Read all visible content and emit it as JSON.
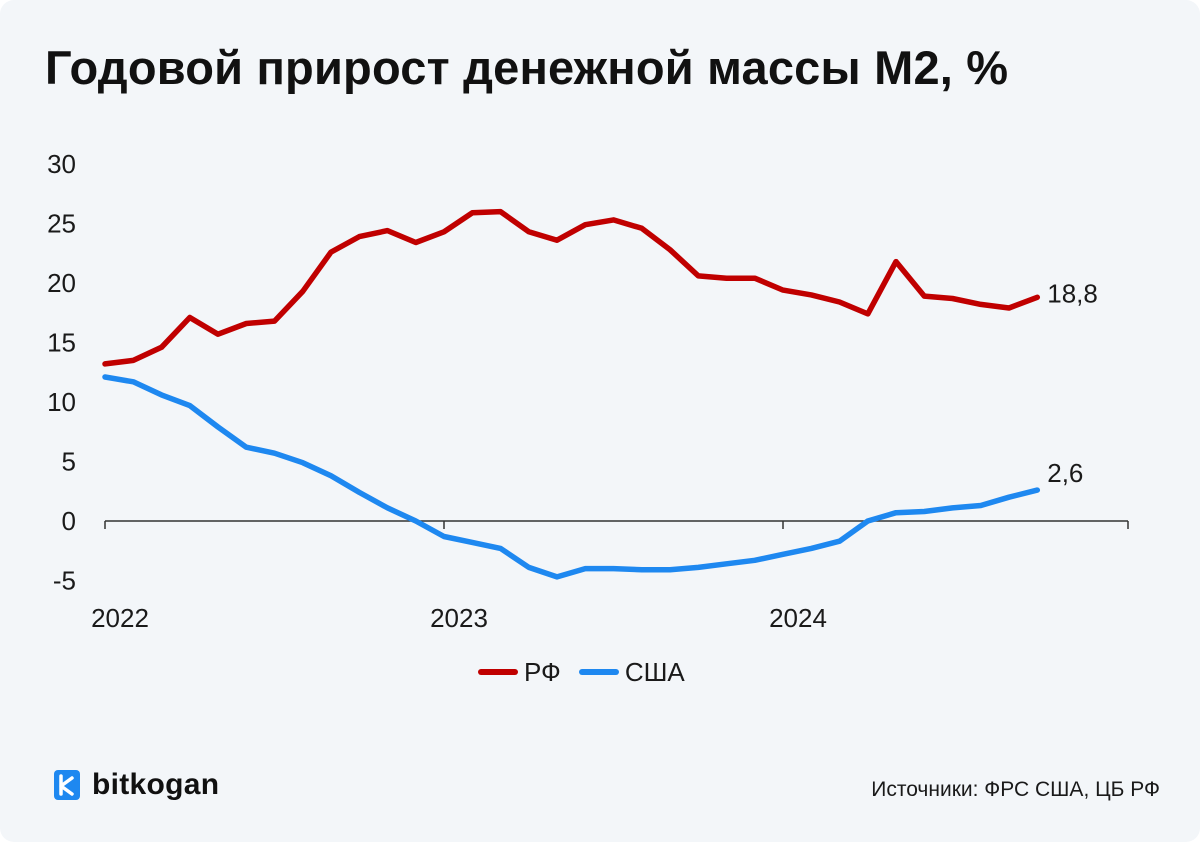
{
  "title": "Годовой прирост денежной массы М2, %",
  "source": "Источники: ФРС США, ЦБ РФ",
  "logo": {
    "text": "bitkogan",
    "icon": "bitkogan-logo-icon"
  },
  "colors": {
    "rf": "#c00000",
    "usa": "#1e88f0",
    "background": "#f3f6f9",
    "axis": "#333333"
  },
  "chart_data": {
    "type": "line",
    "title": "Годовой прирост денежной массы М2, %",
    "xlabel": "",
    "ylabel": "",
    "x_ticks": [
      "2022",
      "2023",
      "2024"
    ],
    "y_ticks": [
      30,
      25,
      20,
      15,
      10,
      5,
      0,
      -5
    ],
    "ylim": [
      -5,
      30
    ],
    "grid": false,
    "legend": "bottom-center",
    "x": [
      0,
      1,
      2,
      3,
      4,
      5,
      6,
      7,
      8,
      9,
      10,
      11,
      12,
      13,
      14,
      15,
      16,
      17,
      18,
      19,
      20,
      21,
      22,
      23,
      24,
      25,
      26,
      27,
      28,
      29,
      30,
      31,
      32,
      33
    ],
    "series": [
      {
        "name": "РФ",
        "color": "#c00000",
        "end_label": "18,8",
        "values": [
          13.2,
          13.5,
          14.6,
          17.1,
          15.7,
          16.6,
          16.8,
          19.3,
          22.6,
          23.9,
          24.4,
          23.4,
          24.3,
          25.9,
          26.0,
          24.3,
          23.6,
          24.9,
          25.3,
          24.6,
          22.8,
          20.6,
          20.4,
          20.4,
          19.4,
          19.0,
          18.4,
          17.4,
          21.8,
          18.9,
          18.7,
          18.2,
          17.9,
          18.8
        ]
      },
      {
        "name": "США",
        "color": "#1e88f0",
        "end_label": "2,6",
        "values": [
          12.1,
          11.7,
          10.6,
          9.7,
          7.9,
          6.2,
          5.7,
          4.9,
          3.8,
          2.4,
          1.1,
          0.0,
          -1.3,
          -1.8,
          -2.3,
          -3.9,
          -4.7,
          -4.0,
          -4.0,
          -4.1,
          -4.1,
          -3.9,
          -3.6,
          -3.3,
          -2.8,
          -2.3,
          -1.7,
          0.0,
          0.7,
          0.8,
          1.1,
          1.3,
          2.0,
          2.6
        ]
      }
    ]
  }
}
